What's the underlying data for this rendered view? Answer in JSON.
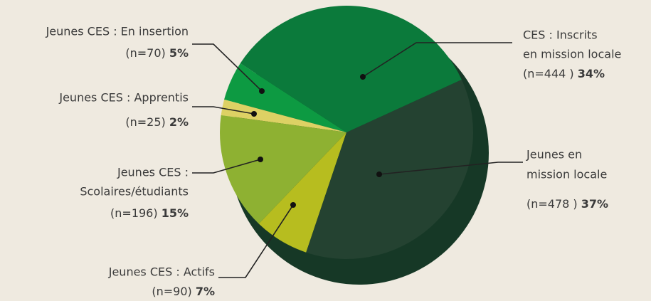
{
  "chart_data": {
    "type": "pie",
    "categories": [
      [
        "Jeunes CES : En insertion"
      ],
      [
        "Jeunes CES : Apprentis"
      ],
      [
        "Jeunes CES :",
        "Scolaires/étudiants"
      ],
      [
        "Jeunes CES : Actifs"
      ],
      [
        "Jeunes en",
        "mission locale"
      ],
      [
        "CES : Inscrits",
        "en mission locale"
      ]
    ],
    "n_labels": [
      "(n=70)",
      "(n=25)",
      "(n=196)",
      "(n=90)",
      "(n=478 )",
      "(n=444 )"
    ],
    "values": [
      5,
      2,
      15,
      7,
      37,
      34
    ],
    "value_labels": [
      "5%",
      "2%",
      "15%",
      "7%",
      "37%",
      "34%"
    ],
    "colors": [
      "#0d9a42",
      "#ddd164",
      "#8eb132",
      "#b7bd1f",
      "#244231",
      "#0b7a3b"
    ]
  }
}
